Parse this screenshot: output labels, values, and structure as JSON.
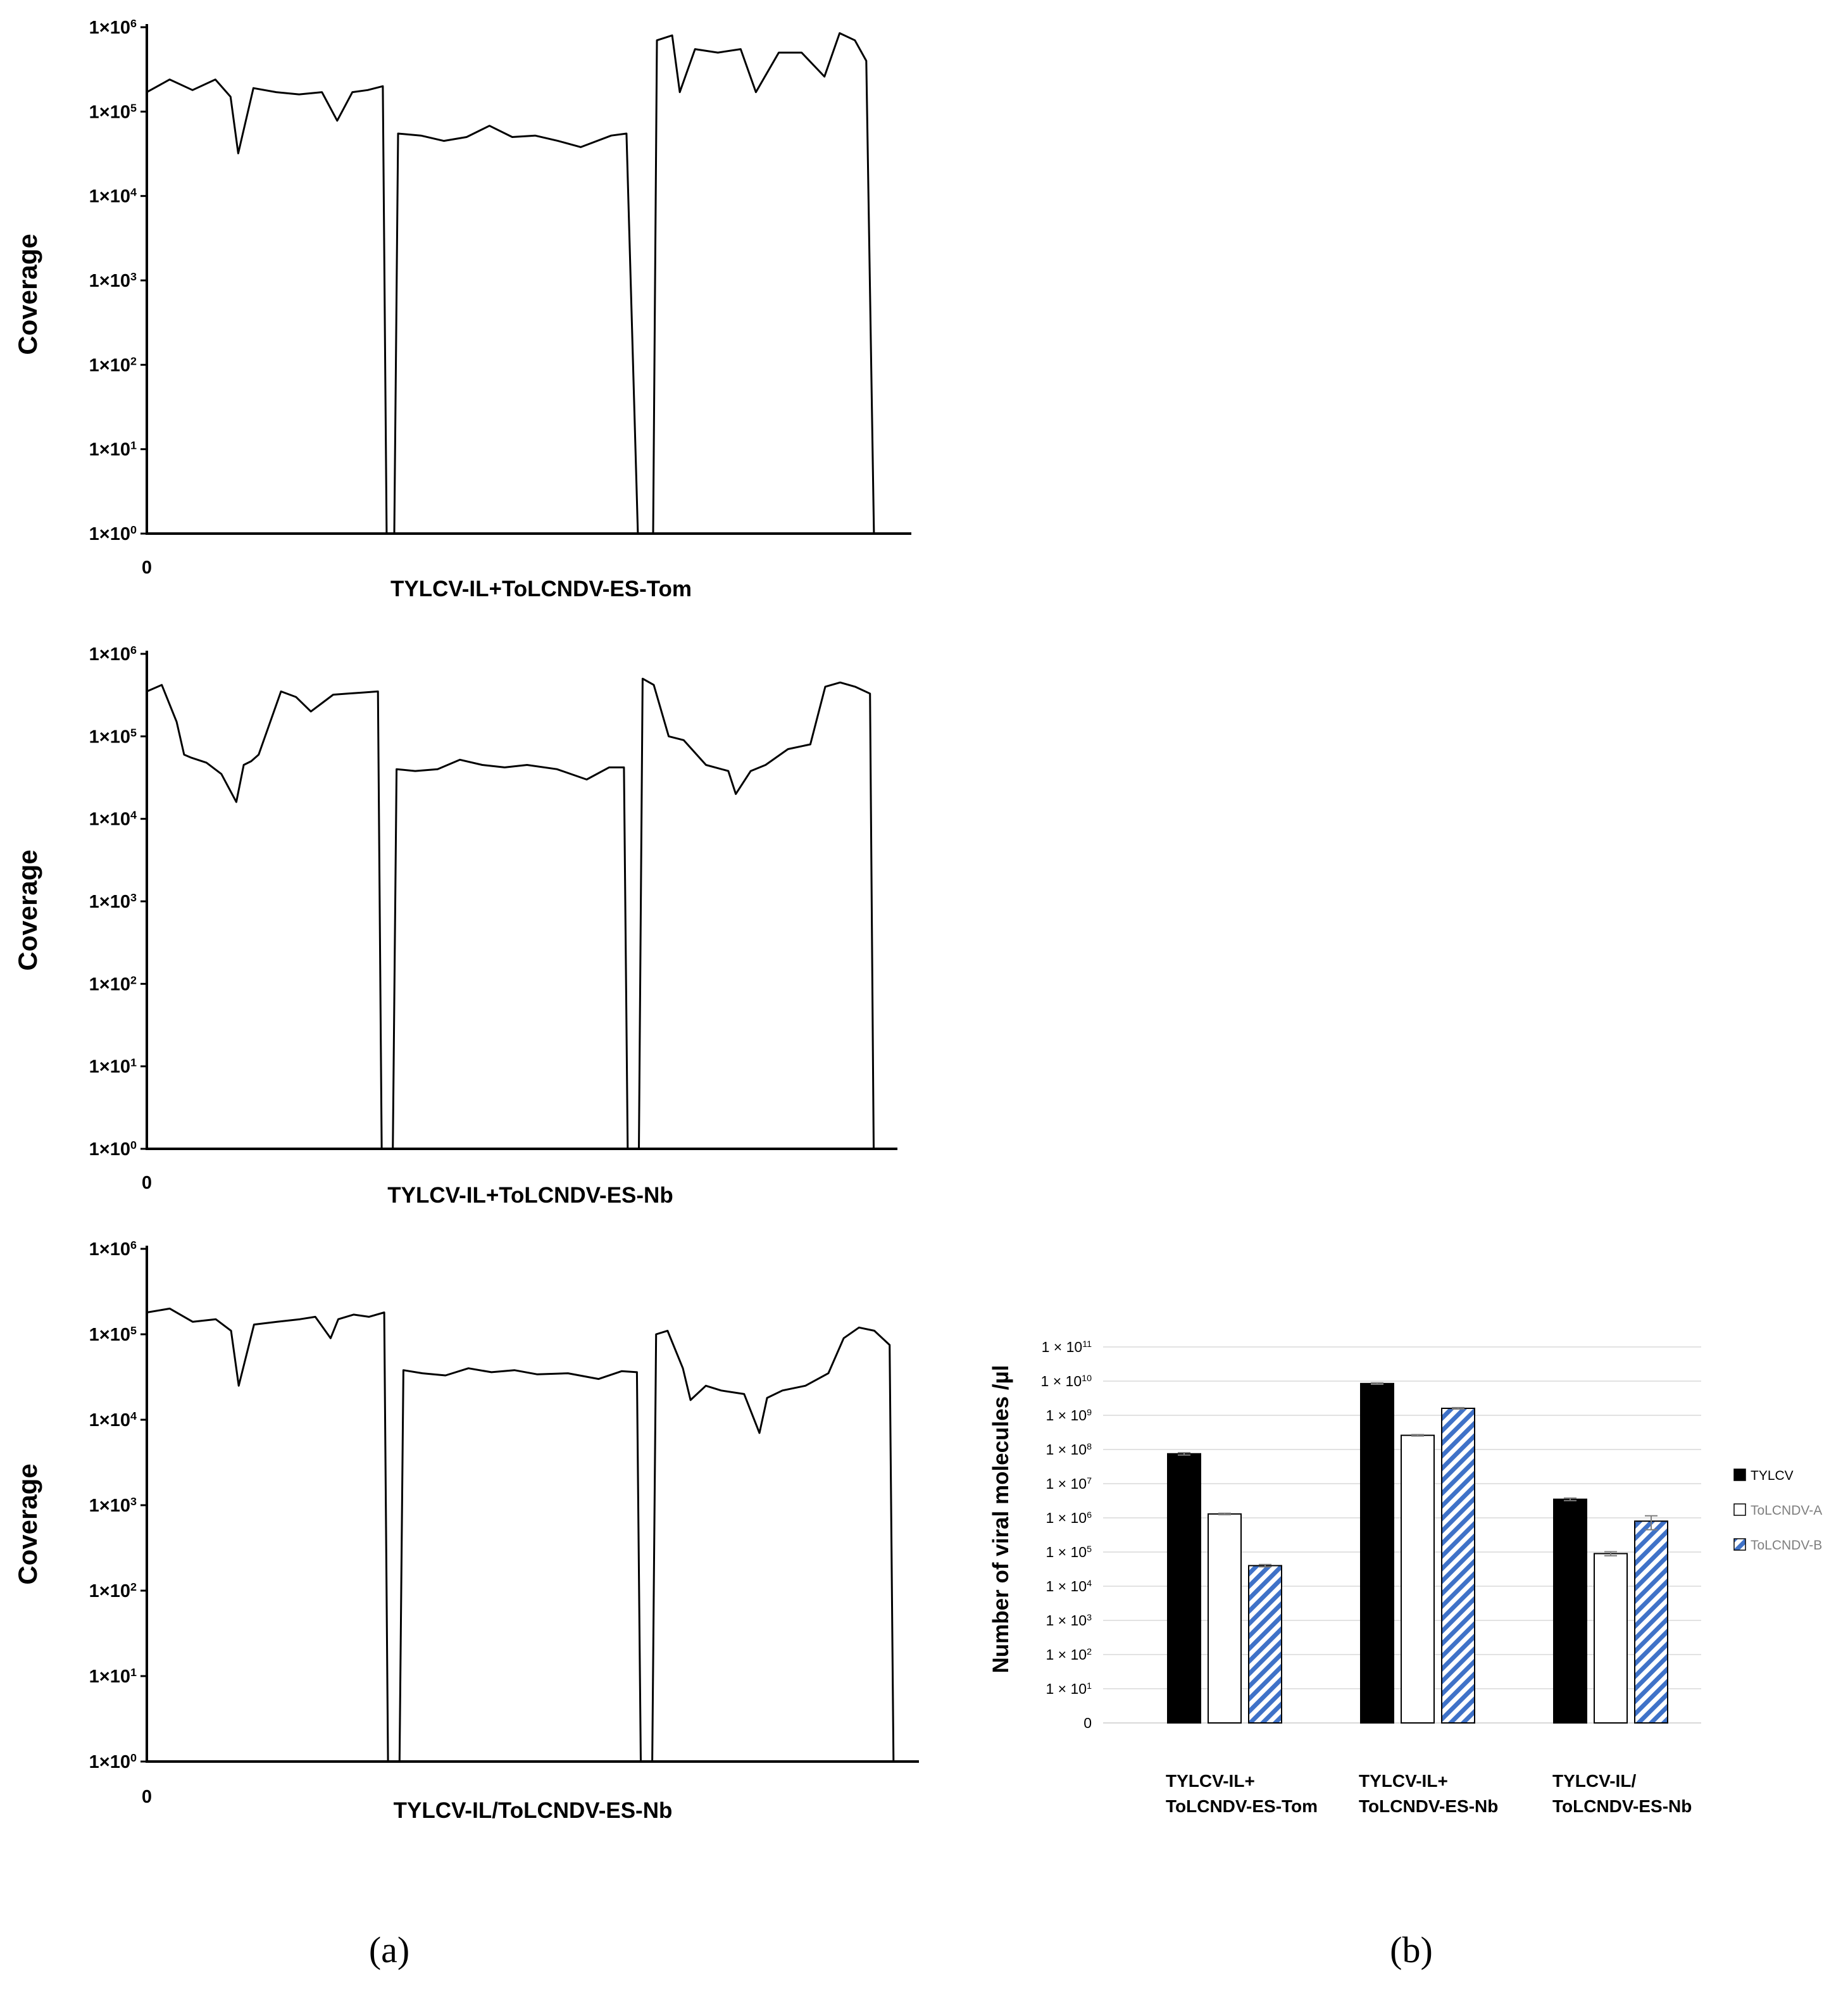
{
  "chart_data": [
    {
      "type": "line",
      "panel": "a",
      "ylabel": "Coverage",
      "xlabel": "TYLCV-IL+ToLCNDV-ES-Tom",
      "x_tick_label": "0",
      "yscale": "log",
      "ylim": [
        1,
        1000000
      ],
      "y_ticks": [
        {
          "value": 1,
          "label": "1×10",
          "exp": "0"
        },
        {
          "value": 10,
          "label": "1×10",
          "exp": "1"
        },
        {
          "value": 100,
          "label": "1×10",
          "exp": "2"
        },
        {
          "value": 1000,
          "label": "1×10",
          "exp": "3"
        },
        {
          "value": 10000,
          "label": "1×10",
          "exp": "4"
        },
        {
          "value": 100000,
          "label": "1×10",
          "exp": "5"
        },
        {
          "value": 1000000,
          "label": "1×10",
          "exp": "6"
        }
      ],
      "xlim": [
        0,
        100
      ],
      "series": [
        {
          "name": "TYLCV",
          "x": [
            0,
            3,
            6,
            9,
            11,
            12,
            14,
            17,
            20,
            23,
            25,
            27,
            29,
            31,
            31.5
          ],
          "y": [
            170000,
            240000,
            180000,
            240000,
            150000,
            32000,
            190000,
            170000,
            160000,
            170000,
            78000,
            170000,
            180000,
            200000,
            1
          ]
        },
        {
          "name": "ToLCNDV-A",
          "x": [
            32.5,
            33,
            36,
            39,
            42,
            45,
            48,
            51,
            54,
            57,
            61,
            63,
            64.5
          ],
          "y": [
            1,
            55000,
            52000,
            45000,
            50000,
            68000,
            50000,
            52000,
            45000,
            38000,
            52000,
            55000,
            1
          ]
        },
        {
          "name": "ToLCNDV-B",
          "x": [
            66.5,
            67,
            69,
            70,
            72,
            75,
            78,
            80,
            83,
            86,
            89,
            91,
            93,
            94.5,
            95.5
          ],
          "y": [
            1,
            700000,
            800000,
            170000,
            550000,
            500000,
            550000,
            170000,
            500000,
            500000,
            260000,
            850000,
            700000,
            400000,
            1
          ]
        }
      ]
    },
    {
      "type": "line",
      "panel": "a",
      "ylabel": "Coverage",
      "xlabel": "TYLCV-IL+ToLCNDV-ES-Nb",
      "x_tick_label": "0",
      "yscale": "log",
      "ylim": [
        1,
        1000000
      ],
      "y_ticks": [
        {
          "value": 1,
          "label": "1×10",
          "exp": "0"
        },
        {
          "value": 10,
          "label": "1×10",
          "exp": "1"
        },
        {
          "value": 100,
          "label": "1×10",
          "exp": "2"
        },
        {
          "value": 1000,
          "label": "1×10",
          "exp": "3"
        },
        {
          "value": 10000,
          "label": "1×10",
          "exp": "4"
        },
        {
          "value": 100000,
          "label": "1×10",
          "exp": "5"
        },
        {
          "value": 1000000,
          "label": "1×10",
          "exp": "6"
        }
      ],
      "xlim": [
        0,
        100
      ],
      "series": [
        {
          "name": "TYLCV",
          "x": [
            0,
            2,
            4,
            5,
            6,
            8,
            10,
            12,
            13,
            14,
            15,
            18,
            20,
            22,
            25,
            27,
            29,
            31,
            31.5
          ],
          "y": [
            350000,
            420000,
            150000,
            60000,
            55000,
            48000,
            35000,
            16000,
            45000,
            50000,
            60000,
            350000,
            300000,
            200000,
            320000,
            330000,
            340000,
            350000,
            1
          ]
        },
        {
          "name": "ToLCNDV-A",
          "x": [
            33,
            33.5,
            36,
            39,
            42,
            45,
            48,
            51,
            55,
            59,
            62,
            64,
            64.5
          ],
          "y": [
            1,
            40000,
            38000,
            40000,
            52000,
            45000,
            42000,
            45000,
            40000,
            30000,
            42000,
            42000,
            1
          ]
        },
        {
          "name": "ToLCNDV-B",
          "x": [
            66,
            66.5,
            68,
            70,
            72,
            75,
            78,
            79,
            81,
            83,
            86,
            89,
            91,
            93,
            95,
            97,
            97.5
          ],
          "y": [
            1,
            500000,
            420000,
            100000,
            90000,
            45000,
            38000,
            20000,
            38000,
            45000,
            70000,
            80000,
            400000,
            450000,
            400000,
            330000,
            1
          ]
        }
      ]
    },
    {
      "type": "line",
      "panel": "a",
      "ylabel": "Coverage",
      "xlabel": "TYLCV-IL/ToLCNDV-ES-Nb",
      "x_tick_label": "0",
      "yscale": "log",
      "ylim": [
        1,
        1000000
      ],
      "y_ticks": [
        {
          "value": 1,
          "label": "1×10",
          "exp": "0"
        },
        {
          "value": 10,
          "label": "1×10",
          "exp": "1"
        },
        {
          "value": 100,
          "label": "1×10",
          "exp": "2"
        },
        {
          "value": 1000,
          "label": "1×10",
          "exp": "3"
        },
        {
          "value": 10000,
          "label": "1×10",
          "exp": "4"
        },
        {
          "value": 100000,
          "label": "1×10",
          "exp": "5"
        },
        {
          "value": 1000000,
          "label": "1×10",
          "exp": "6"
        }
      ],
      "xlim": [
        0,
        100
      ],
      "series": [
        {
          "name": "TYLCV",
          "x": [
            0,
            3,
            6,
            9,
            11,
            12,
            14,
            17,
            20,
            22,
            24,
            25,
            27,
            29,
            31,
            31.5
          ],
          "y": [
            180000,
            200000,
            140000,
            150000,
            110000,
            25000,
            130000,
            140000,
            150000,
            160000,
            90000,
            150000,
            170000,
            160000,
            180000,
            1
          ]
        },
        {
          "name": "ToLCNDV-A",
          "x": [
            33,
            33.5,
            36,
            39,
            42,
            45,
            48,
            51,
            55,
            59,
            62,
            64,
            64.5
          ],
          "y": [
            1,
            38000,
            35000,
            33000,
            40000,
            36000,
            38000,
            34000,
            35000,
            30000,
            37000,
            36000,
            1
          ]
        },
        {
          "name": "ToLCNDV-B",
          "x": [
            66,
            66.5,
            68,
            70,
            71,
            73,
            75,
            78,
            80,
            81,
            83,
            86,
            89,
            91,
            93,
            95,
            97,
            97.5
          ],
          "y": [
            1,
            100000,
            110000,
            40000,
            17000,
            25000,
            22000,
            20000,
            7000,
            18000,
            22000,
            25000,
            35000,
            90000,
            120000,
            110000,
            75000,
            1
          ]
        }
      ]
    },
    {
      "type": "bar",
      "panel": "b",
      "ylabel": "Number of viral molecules /µl",
      "yscale": "log",
      "ylim": [
        0,
        100000000000
      ],
      "y_ticks": [
        {
          "value": 1,
          "label": "0",
          "exp": ""
        },
        {
          "value": 10,
          "label": "1 × 10",
          "exp": "1"
        },
        {
          "value": 100,
          "label": "1 × 10",
          "exp": "2"
        },
        {
          "value": 1000,
          "label": "1 × 10",
          "exp": "3"
        },
        {
          "value": 10000,
          "label": "1 × 10",
          "exp": "4"
        },
        {
          "value": 100000,
          "label": "1 × 10",
          "exp": "5"
        },
        {
          "value": 1000000,
          "label": "1 × 10",
          "exp": "6"
        },
        {
          "value": 10000000,
          "label": "1 × 10",
          "exp": "7"
        },
        {
          "value": 100000000,
          "label": "1 × 10",
          "exp": "8"
        },
        {
          "value": 1000000000,
          "label": "1 × 10",
          "exp": "9"
        },
        {
          "value": 10000000000,
          "label": "1 × 10",
          "exp": "10"
        },
        {
          "value": 100000000000,
          "label": "1 × 10",
          "exp": "11"
        }
      ],
      "categories": [
        {
          "line1": "TYLCV-IL+",
          "line2": "ToLCNDV-ES-Tom"
        },
        {
          "line1": "TYLCV-IL+",
          "line2": "ToLCNDV-ES-Nb"
        },
        {
          "line1": "TYLCV-IL/",
          "line2": "ToLCNDV-ES-Nb"
        }
      ],
      "series": [
        {
          "name": "TYLCV",
          "fill": "#000000",
          "values": [
            75000000,
            8500000000,
            3500000
          ],
          "errors": [
            6000000,
            400000000,
            300000
          ]
        },
        {
          "name": "ToLCNDV-A",
          "fill": "#ffffff",
          "values": [
            1300000,
            260000000,
            90000
          ],
          "errors": [
            60000,
            12000000,
            12000
          ]
        },
        {
          "name": "ToLCNDV-B",
          "fill": "hatch",
          "values": [
            40000,
            1600000000,
            800000
          ],
          "errors": [
            3000,
            80000000,
            350000
          ]
        }
      ],
      "legend_position": "right"
    }
  ],
  "panel_labels": {
    "a": "(a)",
    "b": "(b)"
  },
  "colors": {
    "hatch_blue": "#3f72c8",
    "gridline": "#d9d9d9",
    "axis": "#000000",
    "error_bar": "#7f7f7f"
  }
}
